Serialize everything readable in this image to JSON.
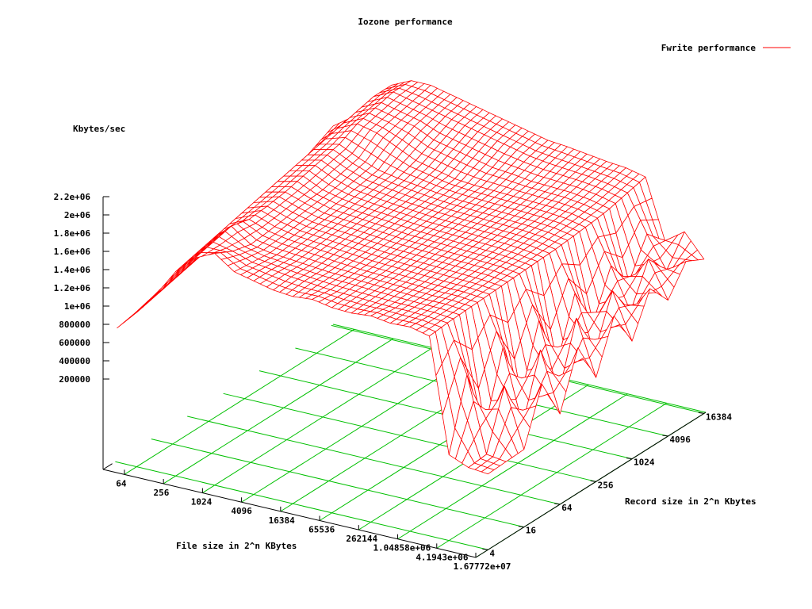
{
  "chart_data": {
    "type": "surface3d",
    "title": "Iozone performance",
    "legend": {
      "label": "Fwrite performance",
      "placement": "top-right",
      "color": "#ff0000"
    },
    "xlabel": "File size in 2^n KBytes",
    "ylabel": "Record size in 2^n Kbytes",
    "zlabel": "Kbytes/sec",
    "x_scale": "log2",
    "y_scale": "log2",
    "xlim": [
      30,
      16777216
    ],
    "ylim": [
      2.5,
      17500
    ],
    "zlim": [
      0,
      2200000
    ],
    "x_ticks": [
      "64",
      "256",
      "1024",
      "4096",
      "16384",
      "65536",
      "262144",
      "1.04858e+06",
      "4.1943e+06",
      "1.67772e+07"
    ],
    "x_tick_values": [
      64,
      256,
      1024,
      4096,
      16384,
      65536,
      262144,
      1048576,
      4194304,
      16777216
    ],
    "y_ticks": [
      "4",
      "16",
      "64",
      "256",
      "1024",
      "4096",
      "16384"
    ],
    "y_tick_values": [
      4,
      16,
      64,
      256,
      1024,
      4096,
      16384
    ],
    "z_ticks": [
      "200000",
      "400000",
      "600000",
      "800000",
      "1e+06",
      "1.2e+06",
      "1.4e+06",
      "1.6e+06",
      "1.8e+06",
      "2e+06",
      "2.2e+06"
    ],
    "z_tick_values": [
      200000,
      400000,
      600000,
      800000,
      1000000,
      1200000,
      1400000,
      1600000,
      1800000,
      2000000,
      2200000
    ],
    "grid": true,
    "surface_color": "#ff0000",
    "grid_color": "#00c000",
    "file_sizes": [
      32,
      64,
      128,
      256,
      512,
      1024,
      2048,
      4096,
      8192,
      16384,
      32768,
      65536,
      131072,
      262144,
      524288,
      1048576,
      2097152,
      4194304,
      8388608,
      16777216
    ],
    "record_sizes": [
      4,
      8,
      16,
      32,
      64,
      128,
      256,
      512,
      1024,
      2048,
      4096,
      8192,
      16384
    ],
    "values": [
      [
        680000,
        900000,
        1150000,
        1450000,
        1650000,
        1750000,
        1600000,
        1550000,
        1500000,
        1480000,
        1500000,
        1460000,
        1450000,
        1470000,
        1440000,
        1450000,
        1400000,
        150000,
        60000,
        40000
      ],
      [
        720000,
        950000,
        1200000,
        1500000,
        1700000,
        1650000,
        1580000,
        1550000,
        1520000,
        1500000,
        1480000,
        1470000,
        1460000,
        1450000,
        1450000,
        1440000,
        1420000,
        900000,
        80000,
        50000
      ],
      [
        780000,
        1000000,
        1250000,
        1550000,
        1750000,
        1600000,
        1560000,
        1540000,
        1520000,
        1500000,
        1490000,
        1480000,
        1470000,
        1460000,
        1450000,
        1450000,
        1430000,
        200000,
        700000,
        60000
      ],
      [
        850000,
        1050000,
        1300000,
        1600000,
        1700000,
        1620000,
        1580000,
        1560000,
        1540000,
        1520000,
        1500000,
        1490000,
        1480000,
        1470000,
        1460000,
        1460000,
        1440000,
        950000,
        150000,
        650000
      ],
      [
        900000,
        1100000,
        1350000,
        1650000,
        1720000,
        1650000,
        1600000,
        1580000,
        1560000,
        1540000,
        1520000,
        1510000,
        1500000,
        1490000,
        1480000,
        1470000,
        1450000,
        300000,
        850000,
        200000
      ],
      [
        950000,
        1150000,
        1400000,
        1700000,
        1750000,
        1680000,
        1620000,
        1600000,
        1580000,
        1560000,
        1540000,
        1530000,
        1520000,
        1510000,
        1500000,
        1490000,
        1460000,
        1000000,
        250000,
        800000
      ],
      [
        1000000,
        1200000,
        1450000,
        1750000,
        1800000,
        1700000,
        1650000,
        1620000,
        1600000,
        1580000,
        1560000,
        1550000,
        1540000,
        1530000,
        1520000,
        1500000,
        1470000,
        400000,
        950000,
        350000
      ],
      [
        1050000,
        1250000,
        1500000,
        1800000,
        1850000,
        1750000,
        1680000,
        1650000,
        1620000,
        1600000,
        1580000,
        1570000,
        1560000,
        1550000,
        1540000,
        1520000,
        1480000,
        1050000,
        450000,
        900000
      ],
      [
        1100000,
        1300000,
        1550000,
        1850000,
        1900000,
        1800000,
        1720000,
        1680000,
        1650000,
        1620000,
        1600000,
        1590000,
        1580000,
        1570000,
        1560000,
        1540000,
        1500000,
        600000,
        1000000,
        500000
      ],
      [
        1150000,
        1350000,
        1600000,
        1900000,
        2000000,
        1950000,
        1850000,
        1750000,
        1700000,
        1650000,
        1630000,
        1620000,
        1610000,
        1600000,
        1590000,
        1570000,
        1520000,
        1100000,
        650000,
        950000
      ],
      [
        1200000,
        1400000,
        1650000,
        1950000,
        2050000,
        2000000,
        1950000,
        1850000,
        1800000,
        1750000,
        1700000,
        1680000,
        1650000,
        1640000,
        1630000,
        1600000,
        1550000,
        800000,
        1100000,
        700000
      ],
      [
        1300000,
        1500000,
        1700000,
        2000000,
        2100000,
        2050000,
        2000000,
        1950000,
        1900000,
        1850000,
        1800000,
        1750000,
        1720000,
        1700000,
        1680000,
        1650000,
        1600000,
        1200000,
        850000,
        1000000
      ],
      [
        1400000,
        1550000,
        1750000,
        2000000,
        2100000,
        2100000,
        2050000,
        2000000,
        1950000,
        1900000,
        1850000,
        1800000,
        1780000,
        1750000,
        1720000,
        1700000,
        1650000,
        1000000,
        1150000,
        900000
      ]
    ]
  }
}
